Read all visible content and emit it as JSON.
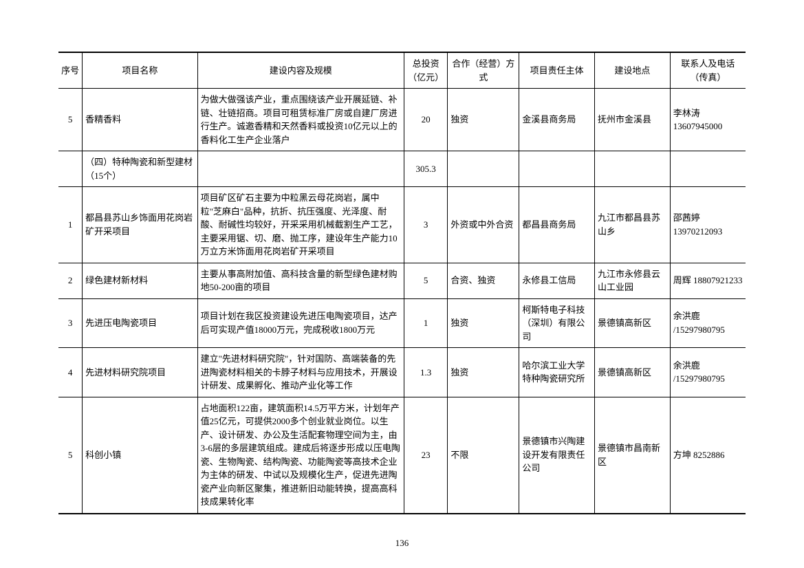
{
  "page_number": "136",
  "headers": {
    "seq": "序号",
    "name": "项目名称",
    "desc": "建设内容及规模",
    "invest": "总投资（亿元）",
    "coop": "合作（经营）方式",
    "resp": "项目责任主体",
    "loc": "建设地点",
    "contact": "联系人及电话（传真）"
  },
  "rows": [
    {
      "seq": "5",
      "name": "香精香料",
      "desc": "为做大做强该产业，重点围绕该产业开展延链、补链、壮链招商。项目可租赁标准厂房或自建厂房进行生产。诚邀香精和天然香料或投资10亿元以上的香料化工生产企业落户",
      "invest": "20",
      "coop": "独资",
      "resp": "金溪县商务局",
      "loc": "抚州市金溪县",
      "contact": "李林涛 13607945000"
    },
    {
      "seq": "",
      "name": "（四）特种陶瓷和新型建材（15个）",
      "desc": "",
      "invest": "305.3",
      "coop": "",
      "resp": "",
      "loc": "",
      "contact": "",
      "section": true
    },
    {
      "seq": "1",
      "name": "都昌县苏山乡饰面用花岗岩矿开采项目",
      "desc": "项目矿区矿石主要为中粒黑云母花岗岩，属中粒\"芝麻白\"品种，抗折、抗压强度、光泽度、耐酸、耐碱性均较好，开采采用机械截割生产工艺，主要采用锯、切、磨、抛工序，建设年生产能力10万立方米饰面用花岗岩矿开采项目",
      "invest": "3",
      "coop": "外资或中外合资",
      "resp": "都昌县商务局",
      "loc": "九江市都昌县苏山乡",
      "contact": "邵茜婷 13970212093"
    },
    {
      "seq": "2",
      "name": "绿色建材新材料",
      "desc": "主要从事高附加值、高科技含量的新型绿色建材购地50-200亩的项目",
      "invest": "5",
      "coop": "合资、独资",
      "resp": "永修县工信局",
      "loc": "九江市永修县云山工业园",
      "contact": "周辉 18807921233"
    },
    {
      "seq": "3",
      "name": "先进压电陶瓷项目",
      "desc": "项目计划在我区投资建设先进压电陶瓷项目，达产后可实现产值18000万元，完成税收1800万元",
      "invest": "1",
      "coop": "独资",
      "resp": "柯斯特电子科技（深圳）有限公司",
      "loc": "景德镇高新区",
      "contact": "余洪鹿 /15297980795"
    },
    {
      "seq": "4",
      "name": "先进材料研究院项目",
      "desc": "建立\"先进材料研究院\"，针对国防、高端装备的先进陶瓷材料相关的卡脖子材料与应用技术，开展设计研发、成果孵化、推动产业化等工作",
      "invest": "1.3",
      "coop": "独资",
      "resp": "哈尔滨工业大学特种陶瓷研究所",
      "loc": "景德镇高新区",
      "contact": "余洪鹿 /15297980795"
    },
    {
      "seq": "5",
      "name": "科创小镇",
      "desc": "占地面积122亩，建筑面积14.5万平方米，计划年产值25亿元，可提供2000多个创业就业岗位。以生产、设计研发、办公及生活配套物理空间为主，由3-6层的多层建筑组成。建成后将逐步形成以压电陶瓷、生物陶瓷、结构陶瓷、功能陶瓷等高技术企业为主体的研发、中试以及规模化生产，促进先进陶瓷产业向新区聚集，推进新旧动能转换，提高高科技成果转化率",
      "invest": "23",
      "coop": "不限",
      "resp": "景德镇市兴陶建设开发有限责任公司",
      "loc": "景德镇市昌南新区",
      "contact": "方坤 8252886"
    }
  ]
}
